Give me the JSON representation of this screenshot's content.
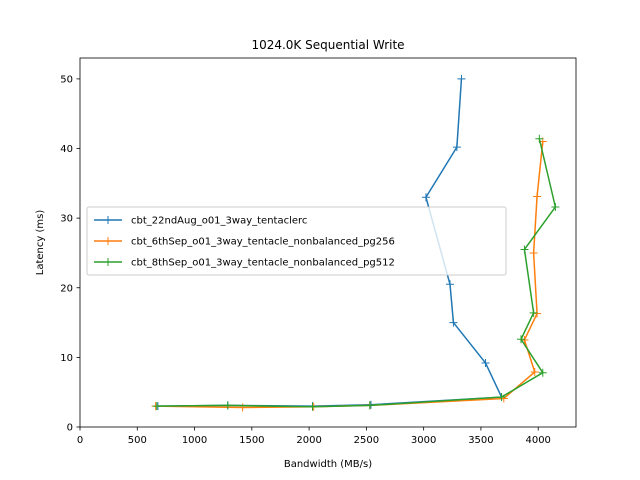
{
  "chart_data": {
    "type": "line",
    "title": "1024.0K  Sequential Write",
    "xlabel": "Bandwidth (MB/s)",
    "ylabel": "Latency (ms)",
    "xlim": [
      0,
      4330
    ],
    "ylim": [
      0,
      53
    ],
    "xticks": [
      0,
      500,
      1000,
      1500,
      2000,
      2500,
      3000,
      3500,
      4000
    ],
    "yticks": [
      0,
      10,
      20,
      30,
      40,
      50
    ],
    "grid": false,
    "legend_position": "center-left",
    "marker": "+",
    "series": [
      {
        "name": "cbt_22ndAug_o01_3way_tentaclerc",
        "color": "#1f77b4",
        "points": [
          [
            680,
            3.0
          ],
          [
            1290,
            3.1
          ],
          [
            2030,
            3.0
          ],
          [
            2540,
            3.2
          ],
          [
            3680,
            4.3
          ],
          [
            3540,
            9.2
          ],
          [
            3260,
            15.0
          ],
          [
            3230,
            20.5
          ],
          [
            3020,
            33.0
          ],
          [
            3290,
            40.2
          ],
          [
            3330,
            50.0
          ]
        ]
      },
      {
        "name": "cbt_6thSep_o01_3way_tentacle_nonbalanced_pg256",
        "color": "#ff7f0e",
        "points": [
          [
            660,
            3.0
          ],
          [
            1420,
            2.8
          ],
          [
            2040,
            2.9
          ],
          [
            2530,
            3.1
          ],
          [
            3700,
            4.1
          ],
          [
            3970,
            7.9
          ],
          [
            3880,
            12.5
          ],
          [
            3990,
            16.3
          ],
          [
            3960,
            25.0
          ],
          [
            3990,
            33.1
          ],
          [
            4040,
            41.0
          ]
        ]
      },
      {
        "name": "cbt_8thSep_o01_3way_tentacle_nonbalanced_pg512",
        "color": "#2ca02c",
        "points": [
          [
            670,
            3.0
          ],
          [
            1290,
            3.1
          ],
          [
            2030,
            2.9
          ],
          [
            2530,
            3.1
          ],
          [
            3680,
            4.3
          ],
          [
            4040,
            7.8
          ],
          [
            3850,
            12.6
          ],
          [
            3960,
            16.4
          ],
          [
            3880,
            25.5
          ],
          [
            4150,
            31.6
          ],
          [
            4010,
            41.4
          ]
        ]
      }
    ]
  }
}
